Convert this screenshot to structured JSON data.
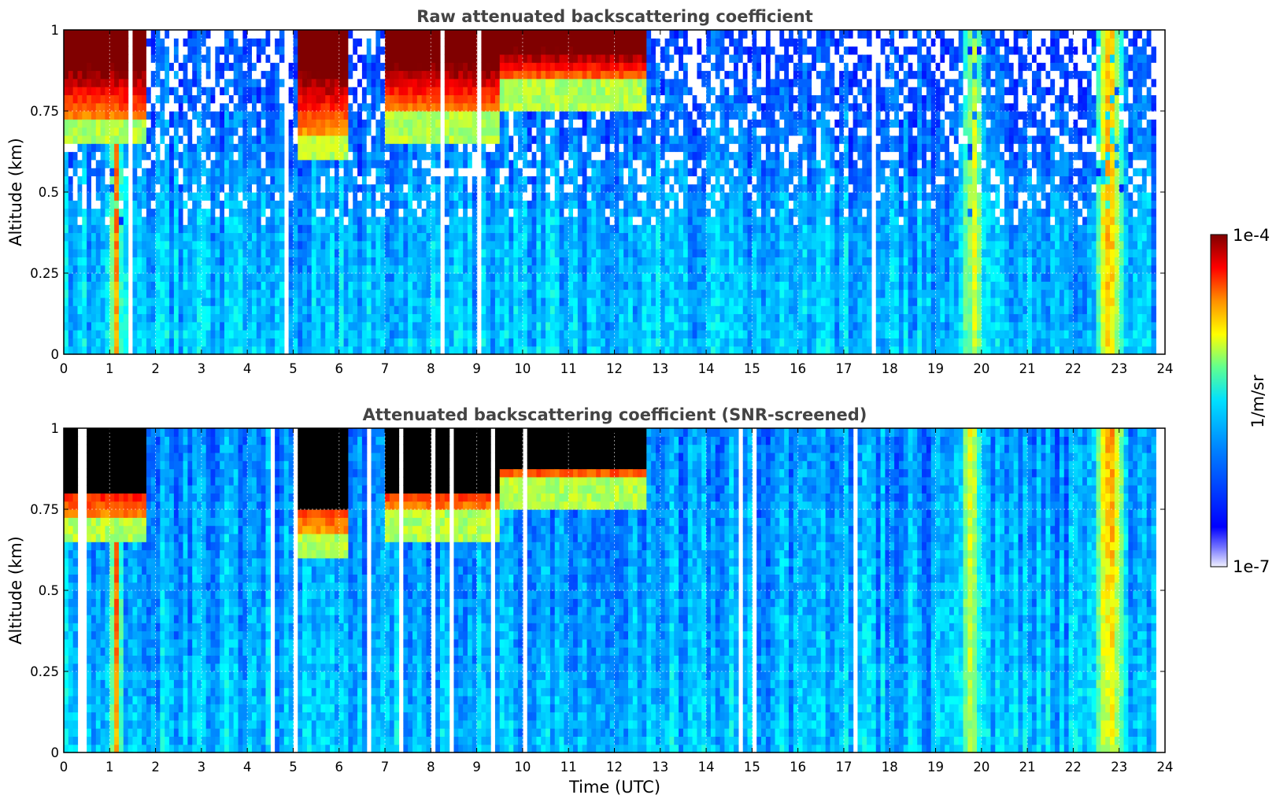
{
  "chart_data": [
    {
      "type": "heatmap",
      "title": "Raw attenuated backscattering coefficient",
      "xlabel": "",
      "ylabel": "Altitude (km)",
      "xlim": [
        0,
        24
      ],
      "ylim": [
        0,
        1
      ],
      "x_ticks": [
        "0",
        "1",
        "2",
        "3",
        "4",
        "5",
        "6",
        "7",
        "8",
        "9",
        "10",
        "11",
        "12",
        "13",
        "14",
        "15",
        "16",
        "17",
        "18",
        "19",
        "20",
        "21",
        "22",
        "23",
        "24"
      ],
      "y_ticks": [
        "0",
        "0.25",
        "0.5",
        "0.75",
        "1"
      ],
      "y_tick_values": [
        0,
        0.25,
        0.5,
        0.75,
        1
      ],
      "grid": true,
      "colorscale": "jet",
      "log_scale": true,
      "data_end_hour": 23.8,
      "cloud_layers": [
        {
          "start": 0.0,
          "end": 1.8,
          "base": 0.72
        },
        {
          "start": 5.1,
          "end": 6.2,
          "base": 0.68
        },
        {
          "start": 7.0,
          "end": 9.5,
          "base": 0.74
        },
        {
          "start": 9.5,
          "end": 12.7,
          "base": 0.84
        }
      ],
      "aerosol_plumes": [
        {
          "start": 1.0,
          "end": 1.3,
          "intensity": "high"
        },
        {
          "start": 19.5,
          "end": 20.1,
          "intensity": "medium"
        },
        {
          "start": 22.4,
          "end": 23.2,
          "intensity": "high"
        }
      ]
    },
    {
      "type": "heatmap",
      "title": "Attenuated backscattering coefficient (SNR-screened)",
      "xlabel": "Time (UTC)",
      "ylabel": "Altitude (km)",
      "xlim": [
        0,
        24
      ],
      "ylim": [
        0,
        1
      ],
      "x_ticks": [
        "0",
        "1",
        "2",
        "3",
        "4",
        "5",
        "6",
        "7",
        "8",
        "9",
        "10",
        "11",
        "12",
        "13",
        "14",
        "15",
        "16",
        "17",
        "18",
        "19",
        "20",
        "21",
        "22",
        "23",
        "24"
      ],
      "y_ticks": [
        "0",
        "0.25",
        "0.5",
        "0.75",
        "1"
      ],
      "y_tick_values": [
        0,
        0.25,
        0.5,
        0.75,
        1
      ],
      "grid": true,
      "colorscale": "jet",
      "log_scale": true,
      "screened": true,
      "data_end_hour": 23.8
    }
  ],
  "colorbar": {
    "max_label": "1e-4",
    "min_label": "1e-7",
    "unit_label": "1/m/sr",
    "colors": [
      "#eeeeff",
      "#0000ff",
      "#00aaff",
      "#00ffff",
      "#ffff00",
      "#ff0000",
      "#800000"
    ]
  }
}
